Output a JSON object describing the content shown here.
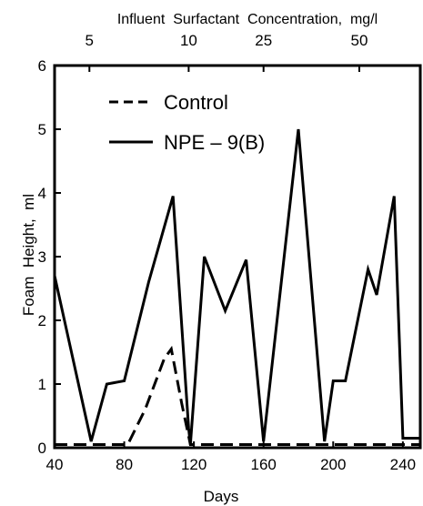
{
  "chart_data": {
    "type": "line",
    "top_axis": {
      "label": "Influent  Surfactant  Concentration,  mg/l",
      "ticks": [
        {
          "day": 60,
          "label": "5"
        },
        {
          "day": 117,
          "label": "10"
        },
        {
          "day": 160,
          "label": "25"
        },
        {
          "day": 215,
          "label": "50"
        }
      ]
    },
    "xlabel": "Days",
    "ylabel": "Foam  Height,  ml",
    "xlim": [
      40,
      250
    ],
    "ylim": [
      0,
      6
    ],
    "x_ticks": [
      40,
      80,
      120,
      160,
      200,
      240
    ],
    "y_ticks": [
      0,
      1,
      2,
      3,
      4,
      5,
      6
    ],
    "legend_position": "top-left",
    "series": [
      {
        "name": "Control",
        "style": "dashed",
        "points": [
          [
            40,
            0.05
          ],
          [
            82,
            0.05
          ],
          [
            92,
            0.6
          ],
          [
            103,
            1.4
          ],
          [
            107,
            1.55
          ],
          [
            113,
            0.7
          ],
          [
            118,
            0.05
          ],
          [
            160,
            0.05
          ],
          [
            200,
            0.05
          ],
          [
            250,
            0.05
          ]
        ]
      },
      {
        "name": "NPE – 9(B)",
        "style": "solid",
        "points": [
          [
            40,
            2.7
          ],
          [
            61,
            0.1
          ],
          [
            70,
            1.0
          ],
          [
            80,
            1.05
          ],
          [
            94,
            2.6
          ],
          [
            108,
            3.95
          ],
          [
            117,
            0.3
          ],
          [
            118,
            0.05
          ],
          [
            126,
            3.0
          ],
          [
            138,
            2.15
          ],
          [
            150,
            2.95
          ],
          [
            160,
            0.1
          ],
          [
            180,
            5.0
          ],
          [
            195,
            0.1
          ],
          [
            200,
            1.05
          ],
          [
            207,
            1.05
          ],
          [
            220,
            2.8
          ],
          [
            225,
            2.4
          ],
          [
            235,
            3.95
          ],
          [
            240,
            0.15
          ],
          [
            250,
            0.15
          ]
        ]
      }
    ]
  }
}
